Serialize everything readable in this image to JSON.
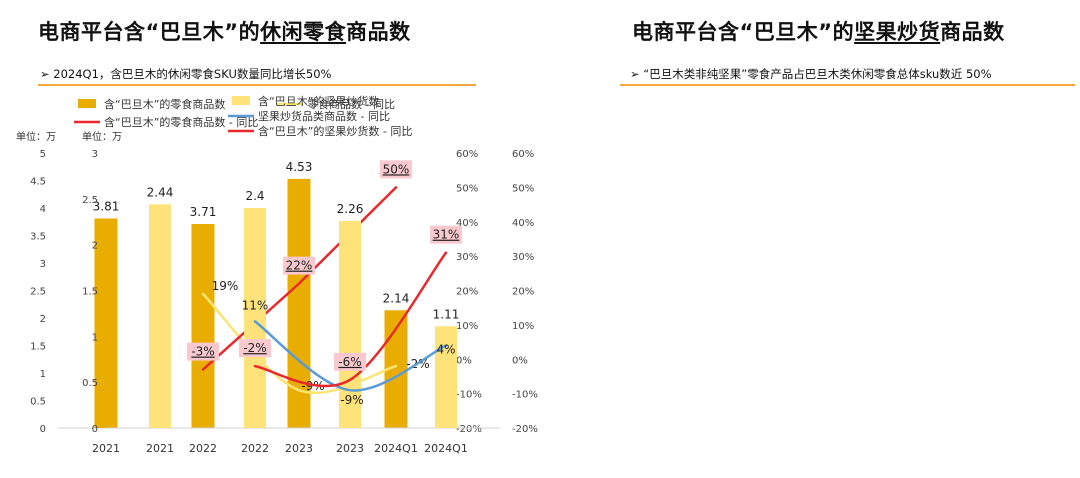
{
  "panels": [
    {
      "title_pre": "电商平台含“巴旦木”的",
      "title_ul": "休闲零食",
      "title_post": "商品数",
      "subline": "➢  2024Q1，含巴旦木的休闲零食SKU数量同比增长50%",
      "unit": "单位：万"
    },
    {
      "title_pre": "电商平台含“巴旦木”的",
      "title_ul": "坚果炒货",
      "title_post": "商品数",
      "subline": "➢  “巴旦木类非纯坚果”零食产品占巴旦木类休闲零食总体sku数近 50%",
      "unit": "单位：万"
    }
  ],
  "chart_data": [
    {
      "type": "bar",
      "categories": [
        "2021",
        "2022",
        "2023",
        "2024Q1"
      ],
      "ylim": [
        0,
        5
      ],
      "yticks": [
        "0",
        "0.5",
        "1",
        "1.5",
        "2",
        "2.5",
        "3",
        "3.5",
        "4",
        "4.5",
        "5"
      ],
      "y2lim": [
        -20,
        60
      ],
      "y2ticks": [
        "-20%",
        "-10%",
        "0%",
        "10%",
        "20%",
        "30%",
        "40%",
        "50%",
        "60%"
      ],
      "colors": {
        "bar": "#e8ad00",
        "line1": "#fbe470",
        "line2": "#e8292c",
        "highlight": "#f9c9ce"
      },
      "series": [
        {
          "name": "含“巴旦木”的零食商品数",
          "kind": "bar",
          "values": [
            3.81,
            3.71,
            4.53,
            2.14
          ],
          "labels": [
            "3.81",
            "3.71",
            "4.53",
            "2.14"
          ]
        },
        {
          "name": "零食商品数 - 同比",
          "kind": "line",
          "axis": "y2",
          "values": [
            null,
            19,
            -9,
            -2
          ],
          "labels": [
            "",
            "19%",
            "-9%",
            "-2%"
          ]
        },
        {
          "name": "含“巴旦木”的零食商品数 - 同比",
          "kind": "line",
          "axis": "y2",
          "values": [
            null,
            -3,
            22,
            50
          ],
          "labels": [
            "",
            "-3%",
            "22%",
            "50%"
          ]
        }
      ]
    },
    {
      "type": "bar",
      "categories": [
        "2021",
        "2022",
        "2023",
        "2024Q1"
      ],
      "ylim": [
        0,
        3
      ],
      "yticks": [
        "0",
        "0.5",
        "1",
        "1.5",
        "2",
        "2.5",
        "3"
      ],
      "y2lim": [
        -20,
        60
      ],
      "y2ticks": [
        "-20%",
        "-10%",
        "0%",
        "10%",
        "20%",
        "30%",
        "40%",
        "50%",
        "60%"
      ],
      "colors": {
        "bar": "#ffe27a",
        "line1": "#5b9bd5",
        "line2": "#e8292c",
        "highlight": "#f9c9ce"
      },
      "series": [
        {
          "name": "含“巴旦木”的坚果炒货数",
          "kind": "bar",
          "values": [
            2.44,
            2.4,
            2.26,
            1.11
          ],
          "labels": [
            "2.44",
            "2.4",
            "2.26",
            "1.11"
          ]
        },
        {
          "name": "坚果炒货品类商品数 - 同比",
          "kind": "line",
          "axis": "y2",
          "values": [
            null,
            11,
            -9,
            4
          ],
          "labels": [
            "",
            "11%",
            "-9%",
            "4%"
          ]
        },
        {
          "name": "含“巴旦木”的坚果炒货数 - 同比",
          "kind": "line",
          "axis": "y2",
          "values": [
            null,
            -2,
            -6,
            31
          ],
          "labels": [
            "",
            "-2%",
            "-6%",
            "31%"
          ]
        }
      ]
    }
  ]
}
